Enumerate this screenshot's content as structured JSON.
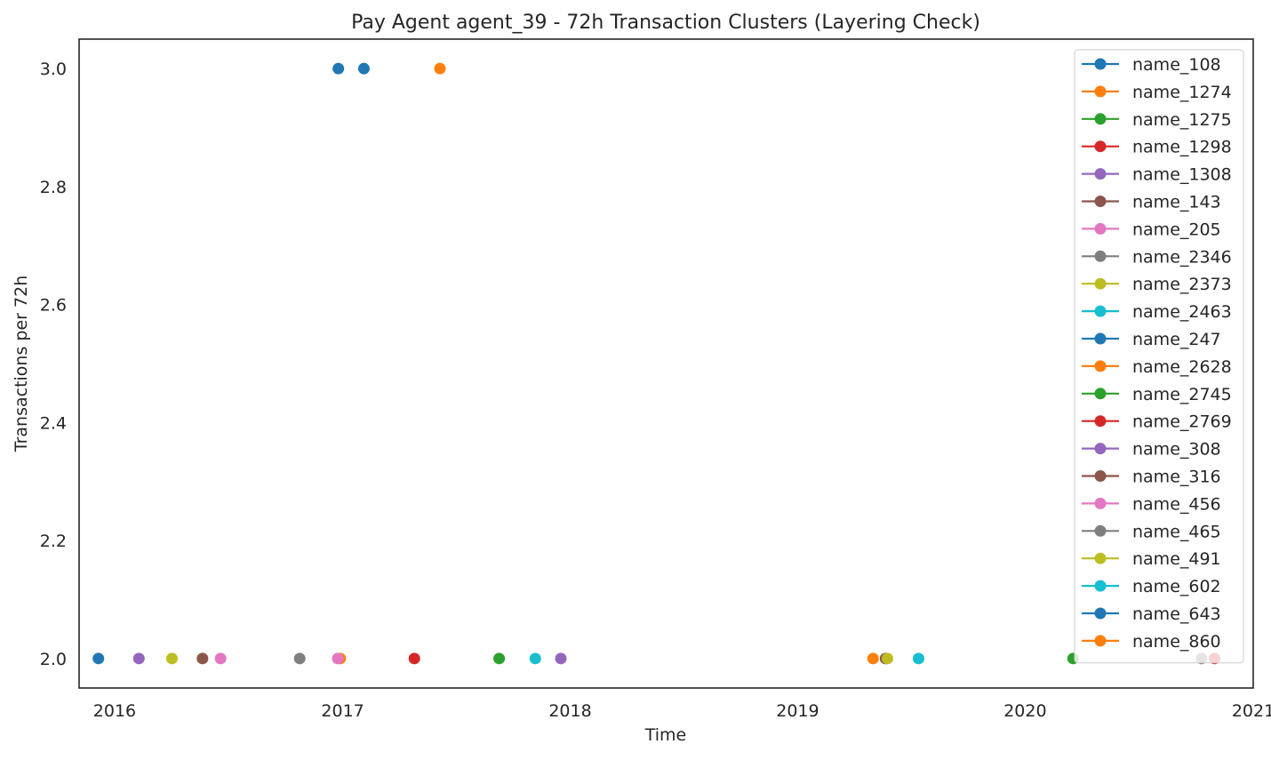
{
  "chart_data": {
    "type": "scatter",
    "title": "Pay Agent agent_39 - 72h Transaction Clusters (Layering Check)",
    "xlabel": "Time",
    "ylabel": "Transactions per 72h",
    "xlim": [
      "2015-11-05",
      "2021-01-01"
    ],
    "ylim": [
      1.95,
      3.05
    ],
    "x_ticks": [
      "2016",
      "2017",
      "2018",
      "2019",
      "2020",
      "2021"
    ],
    "x_tick_dates": [
      "2016-01-01",
      "2017-01-01",
      "2018-01-01",
      "2019-01-01",
      "2020-01-01",
      "2021-01-01"
    ],
    "y_ticks": [
      "2.0",
      "2.2",
      "2.4",
      "2.6",
      "2.8",
      "3.0"
    ],
    "y_tick_values": [
      2.0,
      2.2,
      2.4,
      2.6,
      2.8,
      3.0
    ],
    "grid": false,
    "legend_position": "upper right",
    "series": [
      {
        "name": "name_108",
        "color": "#1f77b4",
        "points": [
          {
            "x": "2015-12-06",
            "y": 2.0
          }
        ]
      },
      {
        "name": "name_1274",
        "color": "#ff7f0e",
        "points": [
          {
            "x": "2016-12-28",
            "y": 2.0
          }
        ]
      },
      {
        "name": "name_1275",
        "color": "#2ca02c",
        "points": [
          {
            "x": "2017-09-09",
            "y": 2.0
          }
        ]
      },
      {
        "name": "name_1298",
        "color": "#d62728",
        "points": [
          {
            "x": "2020-10-31",
            "y": 2.0
          }
        ]
      },
      {
        "name": "name_1308",
        "color": "#9467bd",
        "points": [
          {
            "x": "2016-02-09",
            "y": 2.0
          }
        ]
      },
      {
        "name": "name_143",
        "color": "#8c564b",
        "points": [
          {
            "x": "2016-05-21",
            "y": 2.0
          }
        ]
      },
      {
        "name": "name_205",
        "color": "#e377c2",
        "points": [
          {
            "x": "2016-06-19",
            "y": 2.0
          }
        ]
      },
      {
        "name": "name_2346",
        "color": "#7f7f7f",
        "points": [
          {
            "x": "2016-10-24",
            "y": 2.0
          }
        ]
      },
      {
        "name": "name_2373",
        "color": "#bcbd22",
        "points": [
          {
            "x": "2016-04-02",
            "y": 2.0
          }
        ]
      },
      {
        "name": "name_2463",
        "color": "#17becf",
        "points": [
          {
            "x": "2019-07-14",
            "y": 2.0
          }
        ]
      },
      {
        "name": "name_247",
        "color": "#1f77b4",
        "points": [
          {
            "x": "2016-12-25",
            "y": 3.0
          },
          {
            "x": "2017-02-04",
            "y": 3.0
          }
        ]
      },
      {
        "name": "name_2628",
        "color": "#ff7f0e",
        "points": [
          {
            "x": "2017-06-06",
            "y": 3.0
          }
        ]
      },
      {
        "name": "name_2745",
        "color": "#2ca02c",
        "points": [
          {
            "x": "2020-03-18",
            "y": 2.0
          }
        ]
      },
      {
        "name": "name_2769",
        "color": "#d62728",
        "points": [
          {
            "x": "2017-04-26",
            "y": 2.0
          }
        ]
      },
      {
        "name": "name_308",
        "color": "#9467bd",
        "points": [
          {
            "x": "2017-12-17",
            "y": 2.0
          }
        ]
      },
      {
        "name": "name_316",
        "color": "#8c564b",
        "points": [
          {
            "x": "2019-05-22",
            "y": 2.0
          }
        ]
      },
      {
        "name": "name_456",
        "color": "#e377c2",
        "points": [
          {
            "x": "2016-12-24",
            "y": 2.0
          }
        ]
      },
      {
        "name": "name_465",
        "color": "#7f7f7f",
        "points": [
          {
            "x": "2020-10-10",
            "y": 2.0
          }
        ]
      },
      {
        "name": "name_491",
        "color": "#bcbd22",
        "points": [
          {
            "x": "2019-05-25",
            "y": 2.0
          }
        ]
      },
      {
        "name": "name_602",
        "color": "#17becf",
        "points": [
          {
            "x": "2017-11-06",
            "y": 2.0
          }
        ]
      },
      {
        "name": "name_643",
        "color": "#1f77b4",
        "points": []
      },
      {
        "name": "name_860",
        "color": "#ff7f0e",
        "points": [
          {
            "x": "2019-05-02",
            "y": 2.0
          }
        ]
      }
    ]
  }
}
